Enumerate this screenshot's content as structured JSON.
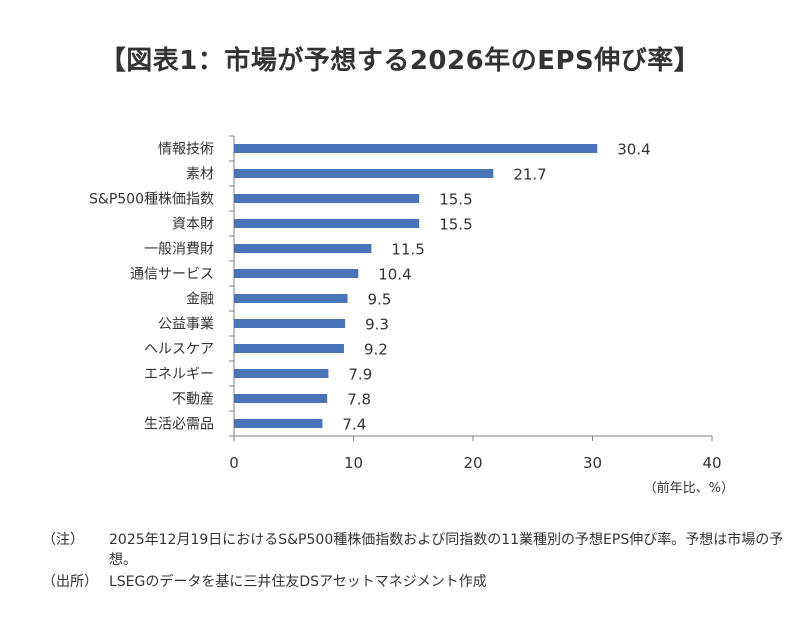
{
  "title": "【図表1：市場が予想する2026年のEPS伸び率】",
  "chart_data": {
    "type": "bar",
    "orientation": "horizontal",
    "categories": [
      "情報技術",
      "素材",
      "S&P500種株価指数",
      "資本財",
      "一般消費財",
      "通信サービス",
      "金融",
      "公益事業",
      "ヘルスケア",
      "エネルギー",
      "不動産",
      "生活必需品"
    ],
    "values": [
      30.4,
      21.7,
      15.5,
      15.5,
      11.5,
      10.4,
      9.5,
      9.3,
      9.2,
      7.9,
      7.8,
      7.4
    ],
    "value_labels": [
      "30.4",
      "21.7",
      "15.5",
      "15.5",
      "11.5",
      "10.4",
      "9.5",
      "9.3",
      "9.2",
      "7.9",
      "7.8",
      "7.4"
    ],
    "xlim": [
      0,
      40
    ],
    "x_ticks": [
      0,
      10,
      20,
      30,
      40
    ],
    "x_unit_label": "（前年比、%）",
    "grid": false,
    "bar_color": "#4a74b8"
  },
  "notes": [
    {
      "tag": "（注）",
      "text": "2025年12月19日におけるS&P500種株価指数および同指数の11業種別の予想EPS伸び率。予想は市場の予想。"
    },
    {
      "tag": "（出所）",
      "text": "LSEGのデータを基に三井住友DSアセットマネジメント作成"
    }
  ]
}
